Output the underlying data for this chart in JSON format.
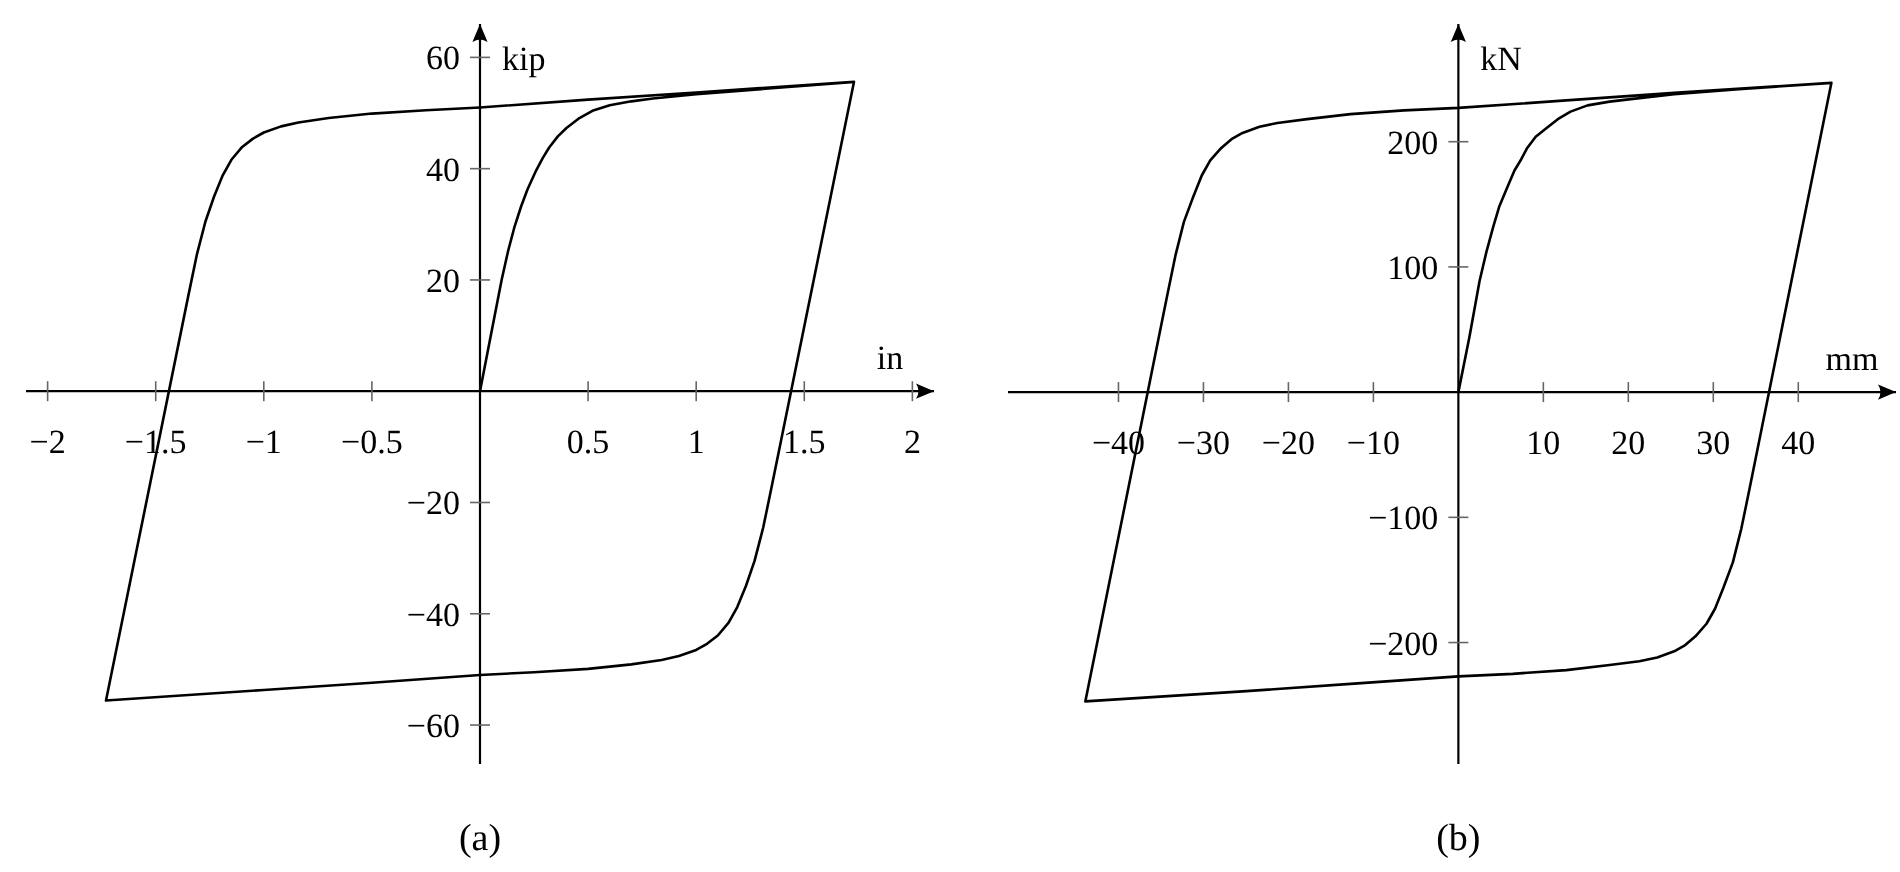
{
  "chart_data": [
    {
      "type": "line",
      "title": "(a)",
      "xlabel": "in",
      "ylabel": "kip",
      "color": "#000000",
      "x": [
        0,
        0.05,
        0.1,
        0.13,
        0.16,
        0.19,
        0.22,
        0.26,
        0.29,
        0.32,
        0.36,
        0.4,
        0.46,
        0.52,
        0.6,
        0.7,
        0.8,
        1,
        1.3,
        1.73,
        1.35,
        1.31,
        1.27,
        1.23,
        1.19,
        1.15,
        1.1,
        1.05,
        1,
        0.92,
        0.84,
        0.7,
        0.5,
        0.25,
        0,
        -0.5,
        -1,
        -1.73,
        -1.35,
        -1.31,
        -1.27,
        -1.23,
        -1.19,
        -1.15,
        -1.1,
        -1.05,
        -1,
        -0.92,
        -0.84,
        -0.7,
        -0.5,
        -0.25,
        0,
        0.5,
        1,
        1.73
      ],
      "values": [
        0,
        10,
        20,
        25.2,
        29.6,
        33.2,
        36.3,
        39.7,
        41.9,
        43.8,
        45.8,
        47.3,
        49.1,
        50.4,
        51.4,
        52.1,
        52.6,
        53.4,
        54.3,
        55.6,
        -17,
        -24.5,
        -30.5,
        -35,
        -38.8,
        -41.6,
        -43.9,
        -45.4,
        -46.5,
        -47.6,
        -48.3,
        -49.1,
        -49.9,
        -50.5,
        -51,
        -52.4,
        -53.7,
        -55.6,
        17,
        24.5,
        30.5,
        35,
        38.8,
        41.6,
        43.9,
        45.4,
        46.5,
        47.6,
        48.3,
        49.1,
        49.9,
        50.5,
        51,
        52.4,
        53.7,
        55.6
      ],
      "xlim": [
        -2.1,
        2.1
      ],
      "ylim": [
        -67,
        66
      ],
      "xticks": [
        {
          "value": -2,
          "label": "−2"
        },
        {
          "value": -1.5,
          "label": "−1.5"
        },
        {
          "value": -1,
          "label": "−1"
        },
        {
          "value": -0.5,
          "label": "−0.5"
        },
        0.5,
        1,
        1.5,
        2
      ],
      "yticks": [
        {
          "value": -60,
          "label": "−60"
        },
        {
          "value": -40,
          "label": "−40"
        },
        {
          "value": -20,
          "label": "−20"
        },
        20,
        40,
        60
      ]
    },
    {
      "type": "line",
      "title": "(b)",
      "xlabel": "mm",
      "ylabel": "kN",
      "color": "#000000",
      "x": [
        0,
        1.3,
        2.5,
        3.3,
        4.1,
        4.8,
        5.6,
        6.6,
        7.4,
        8.1,
        9.1,
        10.2,
        11.7,
        13.2,
        15.2,
        17.8,
        20.3,
        25.4,
        33,
        43.9,
        34.3,
        33.3,
        32.3,
        31.2,
        30.2,
        29.2,
        27.9,
        26.7,
        25.4,
        23.4,
        21.3,
        17.8,
        12.7,
        6.4,
        0,
        -12.7,
        -25.4,
        -43.9,
        -34.3,
        -33.3,
        -32.3,
        -31.2,
        -30.2,
        -29.2,
        -27.9,
        -26.7,
        -25.4,
        -23.4,
        -21.3,
        -17.8,
        -12.7,
        -6.4,
        0,
        12.7,
        25.4,
        43.9
      ],
      "values": [
        0,
        44,
        89,
        112,
        132,
        148,
        161,
        177,
        186,
        195,
        204,
        210,
        218,
        224,
        229,
        232,
        234,
        238,
        242,
        247,
        -76,
        -109,
        -136,
        -156,
        -173,
        -185,
        -195,
        -202,
        -207,
        -212,
        -215,
        -218,
        -222,
        -225,
        -227,
        -233,
        -239,
        -247,
        76,
        109,
        136,
        156,
        173,
        185,
        195,
        202,
        207,
        212,
        215,
        218,
        222,
        225,
        227,
        233,
        239,
        247
      ],
      "xlim": [
        -53,
        51.5
      ],
      "ylim": [
        -297,
        294
      ],
      "xticks": [
        {
          "value": -40,
          "label": "−40"
        },
        {
          "value": -30,
          "label": "−30"
        },
        {
          "value": -20,
          "label": "−20"
        },
        {
          "value": -10,
          "label": "−10"
        },
        10,
        20,
        30,
        40
      ],
      "yticks": [
        {
          "value": -200,
          "label": "−200"
        },
        {
          "value": -100,
          "label": "−100"
        },
        100,
        200
      ]
    }
  ]
}
